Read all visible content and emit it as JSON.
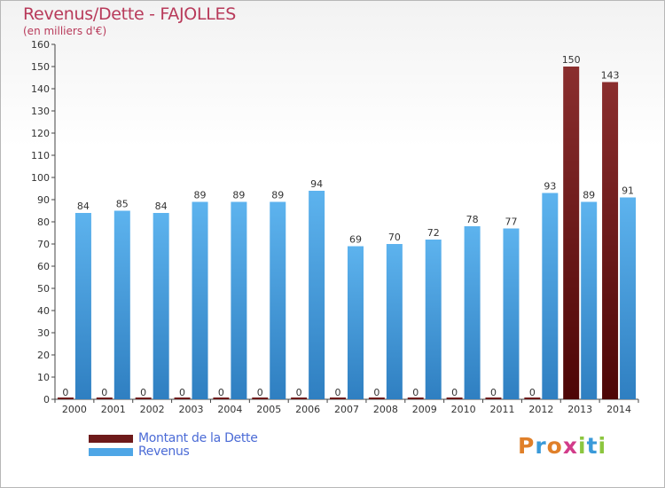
{
  "title": "Revenus/Dette - FAJOLLES",
  "subtitle": "(en milliers d'€)",
  "logo_text": "Proxiti",
  "colors": {
    "debt": "#6e1a1a",
    "revenue": "#4ea6e6",
    "title": "#b83a5a",
    "legend_text": "#4b6bd6"
  },
  "legend": [
    {
      "label": "Montant de la Dette",
      "color": "#6e1a1a"
    },
    {
      "label": "Revenus",
      "color": "#4ea6e6"
    }
  ],
  "chart_data": {
    "type": "bar",
    "title": "Revenus/Dette - FAJOLLES",
    "subtitle": "(en milliers d'€)",
    "categories": [
      "2000",
      "2001",
      "2002",
      "2003",
      "2004",
      "2005",
      "2006",
      "2007",
      "2008",
      "2009",
      "2010",
      "2011",
      "2012",
      "2013",
      "2014"
    ],
    "series": [
      {
        "name": "Montant de la Dette",
        "values": [
          0,
          0,
          0,
          0,
          0,
          0,
          0,
          0,
          0,
          0,
          0,
          0,
          0,
          150,
          143
        ]
      },
      {
        "name": "Revenus",
        "values": [
          84,
          85,
          84,
          89,
          89,
          89,
          94,
          69,
          70,
          72,
          78,
          77,
          93,
          89,
          91
        ]
      }
    ],
    "ylim": [
      0,
      160
    ],
    "yticks": [
      0,
      10,
      20,
      30,
      40,
      50,
      60,
      70,
      80,
      90,
      100,
      110,
      120,
      130,
      140,
      150,
      160
    ],
    "grid": false,
    "legend_position": "bottom-left"
  }
}
